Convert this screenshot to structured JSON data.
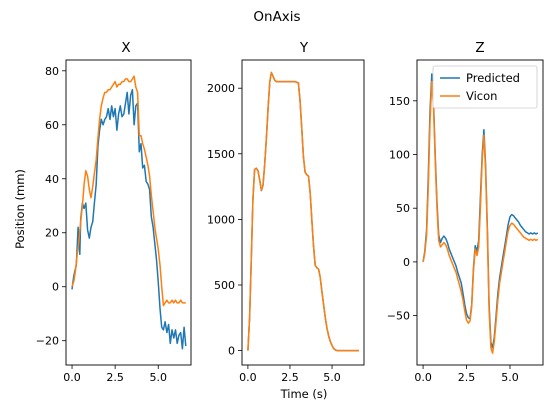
{
  "figure": {
    "title": "OnAxis"
  },
  "legend": {
    "location": "upper-right of Z panel"
  },
  "colors": {
    "predicted": "#1f77b4",
    "vicon": "#ff7f0e"
  },
  "chart_data": [
    {
      "type": "line",
      "title": "X",
      "xlabel": "",
      "ylabel": "Position (mm)",
      "xlim": [
        -0.35,
        6.9
      ],
      "ylim": [
        -29,
        84
      ],
      "xticks": [
        0.0,
        2.5,
        5.0
      ],
      "xtick_labels": [
        "0.0",
        "2.5",
        "5.0"
      ],
      "yticks": [
        -20,
        0,
        20,
        40,
        60,
        80
      ],
      "ytick_labels": [
        "−20",
        "0",
        "20",
        "40",
        "60",
        "80"
      ],
      "series": [
        {
          "name": "Predicted",
          "x": [
            0.0,
            0.1,
            0.25,
            0.35,
            0.45,
            0.5,
            0.6,
            0.7,
            0.8,
            0.9,
            1.0,
            1.1,
            1.2,
            1.3,
            1.4,
            1.5,
            1.6,
            1.7,
            1.8,
            1.9,
            2.0,
            2.1,
            2.2,
            2.3,
            2.4,
            2.5,
            2.6,
            2.7,
            2.8,
            2.9,
            3.0,
            3.1,
            3.2,
            3.3,
            3.4,
            3.5,
            3.6,
            3.7,
            3.8,
            3.9,
            4.0,
            4.1,
            4.2,
            4.3,
            4.4,
            4.5,
            4.6,
            4.7,
            4.8,
            4.9,
            5.0,
            5.1,
            5.2,
            5.3,
            5.4,
            5.5,
            5.6,
            5.7,
            5.8,
            5.9,
            6.0,
            6.1,
            6.2,
            6.3,
            6.4,
            6.5,
            6.6
          ],
          "y": [
            -1,
            4,
            8,
            22,
            12,
            25,
            31,
            29,
            31,
            21,
            18,
            22,
            24,
            31,
            38,
            52,
            58,
            62,
            60,
            62,
            63,
            66,
            62,
            67,
            63,
            66,
            58,
            64,
            67,
            63,
            64,
            68,
            72,
            64,
            71,
            73,
            60,
            67,
            68,
            50,
            53,
            44,
            45,
            39,
            38,
            36,
            26,
            22,
            16,
            10,
            2,
            -8,
            -15,
            -16,
            -13,
            -17,
            -14,
            -21,
            -16,
            -19,
            -16,
            -21,
            -18,
            -17,
            -23,
            -15,
            -22
          ]
        },
        {
          "name": "Vicon",
          "x": [
            0.0,
            0.1,
            0.2,
            0.3,
            0.4,
            0.5,
            0.6,
            0.7,
            0.8,
            0.9,
            1.0,
            1.1,
            1.2,
            1.3,
            1.4,
            1.5,
            1.6,
            1.7,
            1.8,
            1.9,
            2.0,
            2.1,
            2.2,
            2.3,
            2.4,
            2.5,
            2.6,
            2.7,
            2.8,
            2.9,
            3.0,
            3.1,
            3.2,
            3.3,
            3.4,
            3.5,
            3.6,
            3.7,
            3.8,
            3.9,
            4.0,
            4.1,
            4.2,
            4.3,
            4.4,
            4.5,
            4.6,
            4.7,
            4.8,
            4.9,
            5.0,
            5.1,
            5.2,
            5.3,
            5.4,
            5.5,
            5.6,
            5.7,
            5.8,
            5.9,
            6.0,
            6.1,
            6.2,
            6.3,
            6.4,
            6.5,
            6.6
          ],
          "y": [
            0,
            2,
            6,
            12,
            17,
            24,
            30,
            38,
            43,
            41,
            36,
            33,
            37,
            42,
            47,
            55,
            62,
            67,
            70,
            72,
            72,
            73,
            73,
            74,
            75,
            76,
            74,
            75,
            75,
            76,
            76,
            77,
            77,
            76,
            76,
            77,
            78,
            74,
            72,
            56,
            56,
            53,
            51,
            48,
            45,
            41,
            34,
            28,
            22,
            18,
            14,
            8,
            0,
            -7,
            -6,
            -5,
            -6,
            -6,
            -5,
            -6,
            -5,
            -6,
            -6,
            -5,
            -6,
            -6,
            -6
          ]
        }
      ]
    },
    {
      "type": "line",
      "title": "Y",
      "xlabel": "Time (s)",
      "ylabel": "",
      "xlim": [
        -0.35,
        6.9
      ],
      "ylim": [
        -110,
        2215
      ],
      "xticks": [
        0.0,
        2.5,
        5.0
      ],
      "xtick_labels": [
        "0.0",
        "2.5",
        "5.0"
      ],
      "yticks": [
        0,
        500,
        1000,
        1500,
        2000
      ],
      "ytick_labels": [
        "0",
        "500",
        "1000",
        "1500",
        "2000"
      ],
      "series": [
        {
          "name": "Predicted",
          "x": [
            0.0,
            0.1,
            0.2,
            0.3,
            0.4,
            0.5,
            0.6,
            0.7,
            0.8,
            0.9,
            1.0,
            1.1,
            1.2,
            1.3,
            1.4,
            1.5,
            1.6,
            1.7,
            1.8,
            1.9,
            2.0,
            2.2,
            2.4,
            2.6,
            2.8,
            3.0,
            3.1,
            3.2,
            3.3,
            3.4,
            3.5,
            3.6,
            3.7,
            3.8,
            3.9,
            4.0,
            4.1,
            4.2,
            4.3,
            4.4,
            4.5,
            4.6,
            4.7,
            4.8,
            4.9,
            5.0,
            5.1,
            5.2,
            5.3,
            5.5,
            6.0,
            6.6
          ],
          "y": [
            0,
            250,
            700,
            1150,
            1380,
            1390,
            1370,
            1300,
            1220,
            1260,
            1420,
            1620,
            1850,
            2050,
            2120,
            2090,
            2060,
            2050,
            2050,
            2050,
            2050,
            2050,
            2050,
            2050,
            2050,
            2040,
            1900,
            1700,
            1480,
            1360,
            1340,
            1330,
            1200,
            1000,
            800,
            650,
            630,
            620,
            560,
            450,
            350,
            250,
            170,
            110,
            70,
            40,
            15,
            5,
            0,
            0,
            0,
            0
          ]
        },
        {
          "name": "Vicon",
          "x": [
            0.0,
            0.1,
            0.2,
            0.3,
            0.4,
            0.5,
            0.6,
            0.7,
            0.8,
            0.9,
            1.0,
            1.1,
            1.2,
            1.3,
            1.4,
            1.5,
            1.6,
            1.7,
            1.8,
            1.9,
            2.0,
            2.2,
            2.4,
            2.6,
            2.8,
            3.0,
            3.1,
            3.2,
            3.3,
            3.4,
            3.5,
            3.6,
            3.7,
            3.8,
            3.9,
            4.0,
            4.1,
            4.2,
            4.3,
            4.4,
            4.5,
            4.6,
            4.7,
            4.8,
            4.9,
            5.0,
            5.1,
            5.2,
            5.3,
            5.5,
            6.0,
            6.6
          ],
          "y": [
            0,
            250,
            700,
            1150,
            1380,
            1390,
            1370,
            1300,
            1220,
            1260,
            1420,
            1620,
            1850,
            2050,
            2120,
            2090,
            2060,
            2050,
            2050,
            2050,
            2050,
            2050,
            2050,
            2050,
            2050,
            2040,
            1900,
            1700,
            1480,
            1360,
            1340,
            1330,
            1200,
            1000,
            800,
            650,
            630,
            620,
            560,
            450,
            350,
            250,
            170,
            110,
            70,
            40,
            15,
            5,
            0,
            0,
            0,
            0
          ]
        }
      ]
    },
    {
      "type": "line",
      "title": "Z",
      "xlabel": "",
      "ylabel": "",
      "xlim": [
        -0.35,
        6.9
      ],
      "ylim": [
        -96,
        188
      ],
      "xticks": [
        0.0,
        2.5,
        5.0
      ],
      "xtick_labels": [
        "0.0",
        "2.5",
        "5.0"
      ],
      "yticks": [
        -50,
        0,
        50,
        100,
        150
      ],
      "ytick_labels": [
        "−50",
        "0",
        "50",
        "100",
        "150"
      ],
      "series": [
        {
          "name": "Predicted",
          "x": [
            0.0,
            0.1,
            0.2,
            0.3,
            0.4,
            0.5,
            0.6,
            0.7,
            0.8,
            0.9,
            1.0,
            1.1,
            1.2,
            1.3,
            1.4,
            1.5,
            1.6,
            1.7,
            1.8,
            1.9,
            2.0,
            2.1,
            2.2,
            2.3,
            2.4,
            2.5,
            2.6,
            2.7,
            2.8,
            2.9,
            3.0,
            3.1,
            3.2,
            3.3,
            3.4,
            3.5,
            3.6,
            3.7,
            3.8,
            3.9,
            4.0,
            4.1,
            4.2,
            4.3,
            4.4,
            4.5,
            4.6,
            4.7,
            4.8,
            4.9,
            5.0,
            5.1,
            5.2,
            5.3,
            5.4,
            5.5,
            5.6,
            5.7,
            5.8,
            5.9,
            6.0,
            6.1,
            6.2,
            6.3,
            6.4,
            6.5,
            6.6
          ],
          "y": [
            0,
            10,
            30,
            80,
            140,
            175,
            150,
            100,
            55,
            25,
            18,
            22,
            24,
            22,
            18,
            12,
            8,
            4,
            0,
            -4,
            -10,
            -15,
            -20,
            -30,
            -40,
            -48,
            -52,
            -53,
            -40,
            -5,
            15,
            10,
            20,
            60,
            100,
            123,
            90,
            30,
            -40,
            -75,
            -80,
            -70,
            -50,
            -30,
            -15,
            -5,
            5,
            15,
            25,
            35,
            42,
            44,
            43,
            41,
            39,
            37,
            34,
            32,
            30,
            28,
            27,
            26,
            27,
            26,
            27,
            26,
            27
          ]
        },
        {
          "name": "Vicon",
          "x": [
            0.0,
            0.1,
            0.2,
            0.3,
            0.4,
            0.5,
            0.6,
            0.7,
            0.8,
            0.9,
            1.0,
            1.1,
            1.2,
            1.3,
            1.4,
            1.5,
            1.6,
            1.7,
            1.8,
            1.9,
            2.0,
            2.1,
            2.2,
            2.3,
            2.4,
            2.5,
            2.6,
            2.7,
            2.8,
            2.9,
            3.0,
            3.1,
            3.2,
            3.3,
            3.4,
            3.5,
            3.6,
            3.7,
            3.8,
            3.9,
            4.0,
            4.1,
            4.2,
            4.3,
            4.4,
            4.5,
            4.6,
            4.7,
            4.8,
            4.9,
            5.0,
            5.1,
            5.2,
            5.3,
            5.4,
            5.5,
            5.6,
            5.7,
            5.8,
            5.9,
            6.0,
            6.1,
            6.2,
            6.3,
            6.4,
            6.5,
            6.6
          ],
          "y": [
            0,
            8,
            25,
            70,
            130,
            168,
            145,
            95,
            50,
            20,
            14,
            16,
            18,
            16,
            12,
            6,
            2,
            -2,
            -6,
            -10,
            -16,
            -22,
            -28,
            -36,
            -46,
            -54,
            -57,
            -55,
            -42,
            -8,
            12,
            6,
            14,
            50,
            95,
            118,
            85,
            25,
            -45,
            -80,
            -85,
            -74,
            -55,
            -36,
            -20,
            -10,
            0,
            10,
            20,
            29,
            34,
            36,
            35,
            33,
            31,
            29,
            27,
            25,
            23,
            22,
            21,
            20,
            21,
            20,
            21,
            20,
            21
          ]
        }
      ]
    }
  ]
}
